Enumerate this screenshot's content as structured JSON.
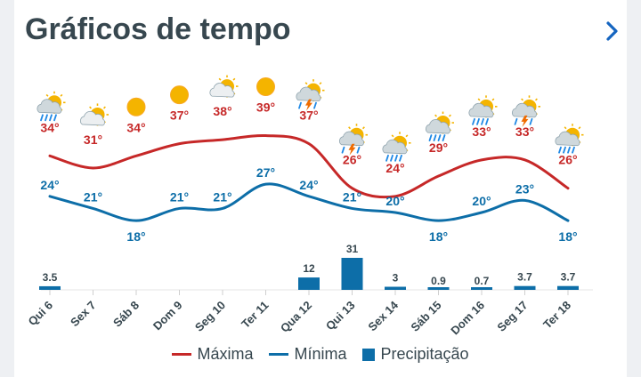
{
  "header": {
    "title": "Gráficos de tempo",
    "next_icon": "chevron-right-icon"
  },
  "legend": {
    "max_label": "Máxima",
    "min_label": "Mínima",
    "precip_label": "Precipitação"
  },
  "colors": {
    "max": "#c62828",
    "min": "#0d6ea8",
    "precip": "#0d6ea8",
    "text": "#37474f"
  },
  "chart_data": {
    "type": "line",
    "categories": [
      "Qui 6",
      "Sex 7",
      "Sáb 8",
      "Dom 9",
      "Seg 10",
      "Ter 11",
      "Qua 12",
      "Qui 13",
      "Sex 14",
      "Sáb 15",
      "Dom 16",
      "Seg 17",
      "Ter 18"
    ],
    "series": [
      {
        "name": "Máxima",
        "values": [
          34,
          31,
          34,
          37,
          38,
          39,
          37,
          26,
          24,
          29,
          33,
          33,
          26
        ],
        "labels": [
          "34°",
          "31°",
          "34°",
          "37°",
          "38°",
          "39°",
          "37°",
          "26°",
          "24°",
          "29°",
          "33°",
          "33°",
          "26°"
        ]
      },
      {
        "name": "Mínima",
        "values": [
          24,
          21,
          18,
          21,
          21,
          27,
          24,
          21,
          20,
          18,
          20,
          23,
          18
        ],
        "labels": [
          "24°",
          "21°",
          "18°",
          "21°",
          "21°",
          "27°",
          "24°",
          "21°",
          "20°",
          "18°",
          "20°",
          "23°",
          "18°"
        ]
      },
      {
        "name": "Precipitação",
        "type": "bar",
        "values": [
          3.5,
          0,
          0,
          0,
          0,
          0,
          12,
          31,
          3,
          0.9,
          0.7,
          3.7,
          3.7
        ],
        "labels": [
          "3.5",
          "",
          "",
          "",
          "",
          "",
          "12",
          "31",
          "3",
          "0.9",
          "0.7",
          "3.7",
          "3.7"
        ]
      }
    ],
    "icons": [
      "rain-sun-icon",
      "cloud-sun-icon",
      "sun-icon",
      "sun-icon",
      "cloud-sun-icon",
      "sun-icon",
      "storm-sun-icon",
      "storm-sun-icon",
      "rain-sun-icon",
      "rain-sun-icon",
      "rain-sun-icon",
      "storm-sun-icon",
      "rain-sun-icon"
    ],
    "ylim": [
      15,
      42
    ],
    "legend_position": "bottom"
  }
}
